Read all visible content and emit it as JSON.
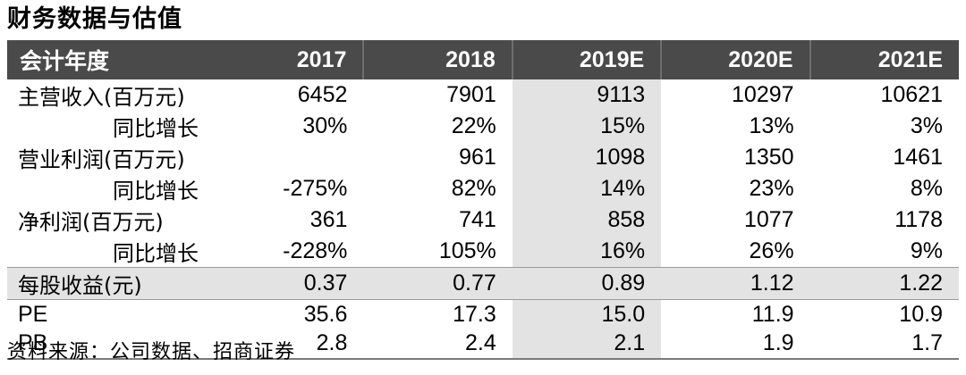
{
  "title": "财务数据与估值",
  "header": {
    "label": "会计年度",
    "years": [
      "2017",
      "2018",
      "2019E",
      "2020E",
      "2021E"
    ]
  },
  "rows": [
    {
      "label": "主营收入(百万元)",
      "values": [
        "6452",
        "7901",
        "9113",
        "10297",
        "10621"
      ]
    },
    {
      "label": "同比增长",
      "values": [
        "30%",
        "22%",
        "15%",
        "13%",
        "3%"
      ]
    },
    {
      "label": "营业利润(百万元)",
      "values": [
        "",
        "961",
        "1098",
        "1350",
        "1461"
      ]
    },
    {
      "label": "同比增长",
      "values": [
        "-275%",
        "82%",
        "14%",
        "23%",
        "8%"
      ]
    },
    {
      "label": "净利润(百万元)",
      "values": [
        "361",
        "741",
        "858",
        "1077",
        "1178"
      ]
    },
    {
      "label": "同比增长",
      "values": [
        "-228%",
        "105%",
        "16%",
        "26%",
        "9%"
      ]
    },
    {
      "label": "每股收益(元)",
      "values": [
        "0.37",
        "0.77",
        "0.89",
        "1.12",
        "1.22"
      ]
    },
    {
      "label": "PE",
      "values": [
        "35.6",
        "17.3",
        "15.0",
        "11.9",
        "10.9"
      ]
    },
    {
      "label": "PB",
      "values": [
        "2.8",
        "2.4",
        "2.1",
        "1.9",
        "1.7"
      ]
    }
  ],
  "source": "资料来源：公司数据、招商证券"
}
